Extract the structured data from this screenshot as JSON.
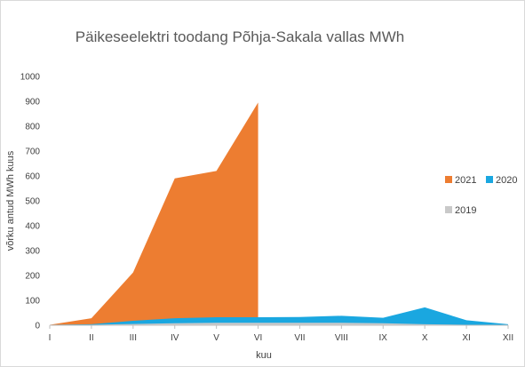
{
  "chart_data": {
    "type": "area",
    "title": "Päikeseelektri toodang Põhja-Sakala vallas MWh",
    "xlabel": "kuu",
    "ylabel": "võrku antud MWh kuus",
    "categories": [
      "I",
      "II",
      "III",
      "IV",
      "V",
      "VI",
      "VII",
      "VIII",
      "IX",
      "X",
      "XI",
      "XII"
    ],
    "ylim": [
      0,
      1000
    ],
    "yticks": [
      "0",
      "100",
      "200",
      "300",
      "400",
      "500",
      "600",
      "700",
      "800",
      "900",
      "1000"
    ],
    "grid": false,
    "legend_position": "right",
    "series": [
      {
        "name": "2019",
        "color": "#c9c9c9",
        "values": [
          0,
          2,
          5,
          8,
          10,
          10,
          10,
          10,
          8,
          4,
          2,
          0
        ]
      },
      {
        "name": "2020",
        "color": "#1aa7e0",
        "values": [
          2,
          4,
          18,
          28,
          32,
          32,
          33,
          38,
          30,
          72,
          20,
          4
        ]
      },
      {
        "name": "2021",
        "color": "#ed7d31",
        "values": [
          2,
          28,
          212,
          590,
          620,
          895,
          null,
          null,
          null,
          null,
          null,
          null
        ]
      }
    ]
  }
}
